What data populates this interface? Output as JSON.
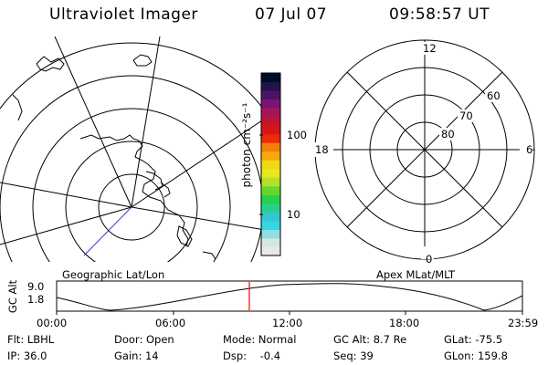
{
  "header": {
    "title": "Ultraviolet Imager",
    "date": "07 Jul 07",
    "time": "09:58:57 UT"
  },
  "colorbar": {
    "unit_label": "photon cm⁻²s⁻¹",
    "tick_labels": [
      "100",
      "10"
    ],
    "colors": [
      "#e8e8e8",
      "#d6e6e6",
      "#8fe0e0",
      "#34d6e0",
      "#33c8d0",
      "#26d28a",
      "#28d246",
      "#6ad62a",
      "#b6e02a",
      "#e8e81c",
      "#f0d814",
      "#f8a80c",
      "#f47e0c",
      "#ee2a0a",
      "#d81414",
      "#c01430",
      "#a4145a",
      "#7c1474",
      "#4c1464",
      "#201448",
      "#000a2a"
    ]
  },
  "left_panel": {
    "label": "Geographic Lat/Lon"
  },
  "right_panel": {
    "label": "Apex MLat/MLT",
    "mlt_labels": {
      "top": "12",
      "left": "18",
      "right": "6",
      "bottom": "0"
    },
    "lat_labels": [
      "60",
      "70",
      "80"
    ]
  },
  "altitude_plot": {
    "ylabel": "GC Alt",
    "ytick_labels": [
      "9.0",
      "1.8"
    ],
    "xtick_labels": [
      "00:00",
      "06:00",
      "12:00",
      "18:00",
      "23:59"
    ],
    "marker_time": "09:58:57",
    "marker_color": "#ff0000"
  },
  "info": {
    "flt": "Flt: LBHL",
    "ip": "IP: 36.0",
    "door": "Door: Open",
    "gain": "Gain: 14",
    "mode": "Mode: Normal",
    "dsp": "Dsp:    -0.4",
    "gc_alt": "GC Alt: 8.7 Re",
    "seq": "Seq: 39",
    "glat": "GLat: -75.5",
    "glon": "GLon: 159.8"
  }
}
